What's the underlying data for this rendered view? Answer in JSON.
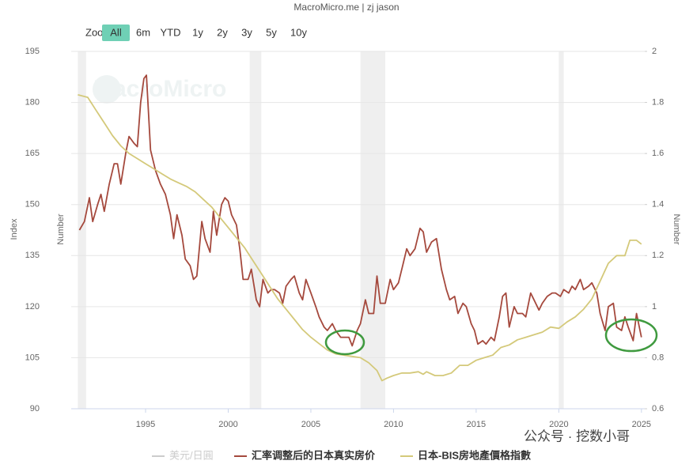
{
  "chart_data": {
    "type": "line",
    "title": "MacroMicro.me | zj jason",
    "watermark": "MacroMicro",
    "credit": "公众号 · 挖数小哥",
    "range_selector": {
      "label": "Zoom",
      "buttons": [
        "All",
        "6m",
        "YTD",
        "1y",
        "2y",
        "3y",
        "5y",
        "10y"
      ],
      "selected": 0
    },
    "y_label": "Index",
    "y2_label": "Number",
    "hidden_series": {
      "name": "美元/日圓",
      "color": "#cccccc",
      "axis_label": "Number"
    },
    "xlim": [
      1990.5,
      2025.2
    ],
    "xticks": [
      1995,
      2000,
      2005,
      2010,
      2015,
      2020,
      2025
    ],
    "ylim": [
      90,
      195
    ],
    "yticks": [
      90,
      105,
      120,
      135,
      150,
      165,
      180,
      195
    ],
    "y2lim": [
      0.6,
      2
    ],
    "y2ticks": [
      0.6,
      0.8,
      1,
      1.2,
      1.4,
      1.6,
      1.8,
      2
    ],
    "grid": true,
    "shaded_periods": [
      [
        1990.9,
        1991.4
      ],
      [
        2001.3,
        2002.0
      ],
      [
        2008.0,
        2009.5
      ],
      [
        2020.0,
        2020.3
      ]
    ],
    "series": [
      {
        "name": "汇率调整后的日本真实房价",
        "color": "#a5493d",
        "axis": "y",
        "x": [
          1991.0,
          1991.3,
          1991.6,
          1991.8,
          1992.1,
          1992.3,
          1992.5,
          1992.8,
          1993.1,
          1993.3,
          1993.5,
          1993.8,
          1994.0,
          1994.3,
          1994.5,
          1994.7,
          1994.9,
          1995.05,
          1995.3,
          1995.6,
          1995.9,
          1996.2,
          1996.5,
          1996.7,
          1996.9,
          1997.2,
          1997.4,
          1997.7,
          1997.9,
          1998.1,
          1998.4,
          1998.6,
          1998.9,
          1999.1,
          1999.3,
          1999.6,
          1999.8,
          2000.0,
          2000.2,
          2000.5,
          2000.7,
          2000.9,
          2001.2,
          2001.4,
          2001.7,
          2001.9,
          2002.1,
          2002.4,
          2002.6,
          2002.8,
          2003.1,
          2003.3,
          2003.5,
          2003.8,
          2004.0,
          2004.3,
          2004.5,
          2004.7,
          2005.0,
          2005.3,
          2005.5,
          2005.8,
          2006.0,
          2006.3,
          2006.5,
          2006.8,
          2007.0,
          2007.3,
          2007.5,
          2007.8,
          2008.0,
          2008.3,
          2008.5,
          2008.8,
          2009.0,
          2009.2,
          2009.5,
          2009.8,
          2010.0,
          2010.3,
          2010.6,
          2010.8,
          2011.0,
          2011.3,
          2011.6,
          2011.8,
          2012.0,
          2012.3,
          2012.6,
          2012.9,
          2013.2,
          2013.4,
          2013.7,
          2013.9,
          2014.2,
          2014.4,
          2014.7,
          2014.9,
          2015.1,
          2015.4,
          2015.6,
          2015.9,
          2016.1,
          2016.4,
          2016.6,
          2016.8,
          2017.0,
          2017.3,
          2017.5,
          2017.8,
          2018.0,
          2018.3,
          2018.5,
          2018.8,
          2019.0,
          2019.3,
          2019.6,
          2019.8,
          2020.1,
          2020.3,
          2020.6,
          2020.8,
          2021.0,
          2021.3,
          2021.5,
          2021.8,
          2022.0,
          2022.3,
          2022.5,
          2022.8,
          2023.0,
          2023.3,
          2023.5,
          2023.8,
          2024.0,
          2024.2,
          2024.5,
          2024.7,
          2025.0
        ],
        "values": [
          142.5,
          145,
          152,
          145,
          150,
          153,
          148,
          156,
          162,
          162,
          156,
          165,
          170,
          168,
          167,
          180,
          187,
          188,
          166,
          160,
          156,
          153,
          147,
          140,
          147,
          141,
          134,
          132,
          128,
          129,
          145,
          140,
          136,
          148,
          141,
          150,
          152,
          151,
          147,
          144,
          137,
          128,
          128,
          131,
          122,
          120,
          128,
          124,
          125,
          125,
          124,
          121,
          126,
          128,
          129,
          124,
          122,
          128,
          124,
          120,
          117,
          114,
          113,
          115,
          113,
          111,
          111,
          111,
          108.5,
          113,
          115,
          122,
          118,
          118,
          129,
          121,
          121,
          128,
          125,
          127,
          133,
          137,
          135,
          137,
          143,
          142,
          136,
          139,
          140,
          131,
          125,
          122,
          123,
          118,
          121,
          120,
          115,
          113,
          109,
          110,
          109,
          111,
          110,
          117,
          123,
          124,
          114,
          120,
          118,
          118,
          117,
          124,
          122,
          119,
          121,
          123,
          124,
          124,
          123,
          125,
          124,
          126,
          125,
          128,
          125,
          126,
          127,
          124,
          118,
          113,
          120,
          121,
          114,
          113,
          117,
          114,
          110,
          118,
          111
        ]
      },
      {
        "name": "日本-BIS房地產價格指數",
        "color": "#d4c97a",
        "axis": "y2",
        "x": [
          1990.9,
          1991.5,
          1992.0,
          1992.5,
          1993.0,
          1993.5,
          1994.0,
          1994.5,
          1995.0,
          1995.5,
          1996.0,
          1996.5,
          1997.0,
          1997.5,
          1998.0,
          1998.5,
          1999.0,
          1999.5,
          2000.0,
          2000.5,
          2001.0,
          2001.5,
          2002.0,
          2002.5,
          2003.0,
          2003.5,
          2004.0,
          2004.5,
          2005.0,
          2005.5,
          2006.0,
          2006.5,
          2007.0,
          2007.5,
          2008.0,
          2008.5,
          2009.0,
          2009.3,
          2009.6,
          2010.0,
          2010.5,
          2011.0,
          2011.5,
          2011.8,
          2012.0,
          2012.5,
          2013.0,
          2013.5,
          2014.0,
          2014.5,
          2015.0,
          2015.5,
          2016.0,
          2016.5,
          2017.0,
          2017.5,
          2018.0,
          2018.5,
          2019.0,
          2019.5,
          2020.0,
          2020.5,
          2021.0,
          2021.5,
          2022.0,
          2022.5,
          2023.0,
          2023.5,
          2024.0,
          2024.3,
          2024.7,
          2025.0
        ],
        "values": [
          1.83,
          1.82,
          1.77,
          1.72,
          1.67,
          1.63,
          1.6,
          1.58,
          1.56,
          1.54,
          1.52,
          1.5,
          1.485,
          1.47,
          1.45,
          1.42,
          1.39,
          1.35,
          1.31,
          1.27,
          1.23,
          1.18,
          1.13,
          1.08,
          1.03,
          0.99,
          0.95,
          0.91,
          0.88,
          0.855,
          0.83,
          0.815,
          0.81,
          0.805,
          0.8,
          0.78,
          0.75,
          0.71,
          0.72,
          0.73,
          0.74,
          0.74,
          0.745,
          0.735,
          0.745,
          0.73,
          0.73,
          0.74,
          0.77,
          0.77,
          0.79,
          0.8,
          0.81,
          0.84,
          0.85,
          0.87,
          0.88,
          0.89,
          0.9,
          0.92,
          0.915,
          0.94,
          0.96,
          0.99,
          1.03,
          1.1,
          1.17,
          1.2,
          1.2,
          1.26,
          1.26,
          1.245
        ]
      }
    ]
  }
}
